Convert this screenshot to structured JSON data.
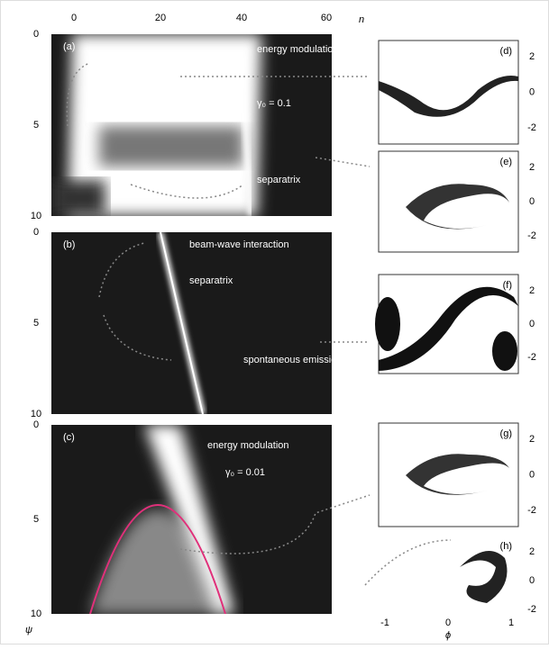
{
  "figure": {
    "top_axis": {
      "ticks": [
        "0",
        "20",
        "40",
        "60"
      ],
      "label": "n"
    },
    "left_axis": {
      "label": "ψ"
    },
    "bottom_axis": {
      "label": "ϕ",
      "ticks": [
        "-1",
        "0",
        "1"
      ]
    },
    "panels": [
      {
        "label": "(a)",
        "ticks": [
          "0",
          "5",
          "10"
        ],
        "annotations": [
          "energy modulation",
          "γ₀ = 0.1",
          "separatrix"
        ]
      },
      {
        "label": "(b)",
        "ticks": [
          "0",
          "5",
          "10"
        ],
        "annotations": [
          "beam-wave interaction",
          "separatrix",
          "spontaneous emission"
        ]
      },
      {
        "label": "(c)",
        "ticks": [
          "0",
          "5",
          "10"
        ],
        "annotations": [
          "energy modulation",
          "γ₀ = 0.01"
        ]
      }
    ],
    "insets": [
      {
        "label": "(d)",
        "ticks": [
          "2",
          "0",
          "-2"
        ]
      },
      {
        "label": "(e)",
        "ticks": [
          "2",
          "0",
          "-2"
        ]
      },
      {
        "label": "(f)",
        "ticks": [
          "2",
          "0",
          "-2"
        ]
      },
      {
        "label": "(g)",
        "ticks": [
          "2",
          "0",
          "-2"
        ]
      },
      {
        "label": "(h)",
        "ticks": [
          "2",
          "0",
          "-2"
        ]
      }
    ]
  }
}
